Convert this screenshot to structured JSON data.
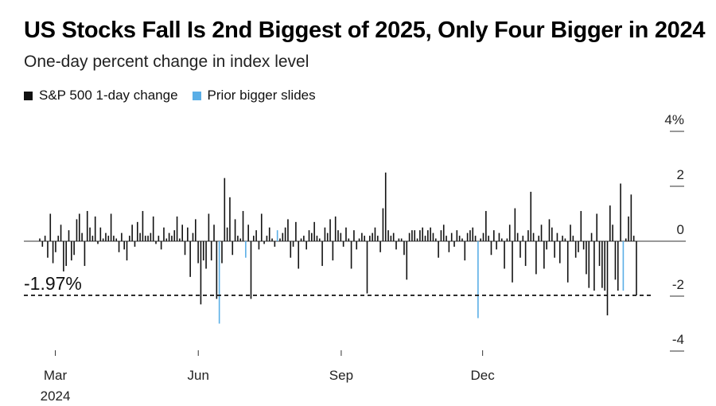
{
  "header": {
    "title": "US Stocks Fall Is 2nd Biggest of 2025, Only Four Bigger in 2024",
    "subtitle": "One-day percent change in index level"
  },
  "colors": {
    "normal": "#111111",
    "highlight": "#5aaee6",
    "axis": "#222222"
  },
  "chart_data": {
    "type": "bar",
    "title": "US Stocks Fall Is 2nd Biggest of 2025, Only Four Bigger in 2024",
    "subtitle": "One-day percent change in index level",
    "legend": [
      {
        "name": "S&P 500 1-day change",
        "color": "#111111"
      },
      {
        "name": "Prior bigger slides",
        "color": "#5aaee6"
      }
    ],
    "legend_position": "top-left",
    "ylim": [
      -4,
      4
    ],
    "y_ticks": [
      {
        "value": 4,
        "label": "4%"
      },
      {
        "value": 2,
        "label": "2"
      },
      {
        "value": 0,
        "label": "0"
      },
      {
        "value": -2,
        "label": "-2"
      },
      {
        "value": -4,
        "label": "-4"
      }
    ],
    "x_ticks": [
      {
        "date": "2024-03-01",
        "label": "Mar",
        "sublabel": "2024"
      },
      {
        "date": "2024-06-01",
        "label": "Jun",
        "sublabel": ""
      },
      {
        "date": "2024-09-01",
        "label": "Sep",
        "sublabel": ""
      },
      {
        "date": "2024-12-01",
        "label": "Dec",
        "sublabel": ""
      }
    ],
    "reference_line": {
      "value": -1.97,
      "label": "-1.97%",
      "style": "dashed"
    },
    "x_start": "2024-02-20",
    "x_end": "2025-03-10",
    "values": [
      0.1,
      -0.2,
      0.2,
      -0.6,
      1.0,
      -0.8,
      -0.4,
      0.2,
      0.6,
      -1.1,
      -0.9,
      0.4,
      -0.7,
      -0.5,
      0.8,
      1.0,
      0.3,
      -0.9,
      1.1,
      0.5,
      0.2,
      0.9,
      -0.1,
      0.5,
      0.1,
      0.3,
      0.2,
      1.0,
      0.2,
      0.1,
      -0.4,
      0.3,
      -0.3,
      -0.7,
      0.2,
      0.6,
      -0.2,
      0.7,
      0.3,
      1.1,
      0.2,
      0.2,
      0.3,
      0.9,
      -0.1,
      0.2,
      -0.3,
      0.5,
      0.1,
      0.3,
      0.2,
      0.4,
      0.9,
      0.1,
      0.6,
      -0.5,
      0.5,
      -1.3,
      0.3,
      0.8,
      -0.8,
      -2.3,
      -0.7,
      -1.0,
      1.0,
      -0.7,
      0.6,
      -2.1,
      -3.0,
      -0.8,
      2.3,
      0.5,
      1.6,
      -0.5,
      0.8,
      0.2,
      0.1,
      1.1,
      -0.6,
      0.6,
      -2.1,
      0.2,
      0.4,
      -0.3,
      1.0,
      -0.1,
      0.2,
      0.5,
      0.1,
      -0.2,
      0.4,
      0.1,
      0.3,
      0.5,
      0.8,
      -0.6,
      -0.2,
      0.7,
      -1.0,
      0.1,
      0.2,
      -0.3,
      0.4,
      0.3,
      0.7,
      0.2,
      0.1,
      -0.9,
      0.5,
      0.3,
      0.8,
      -0.7,
      0.9,
      0.4,
      0.3,
      -0.2,
      0.5,
      0.1,
      -1.0,
      0.4,
      -0.3,
      0.1,
      0.3,
      0.2,
      -1.9,
      0.2,
      0.3,
      0.5,
      0.2,
      -0.4,
      1.2,
      2.5,
      0.4,
      0.2,
      0.3,
      -0.3,
      0.1,
      0.1,
      -0.5,
      -1.4,
      0.3,
      0.4,
      0.4,
      0.1,
      0.4,
      0.5,
      0.2,
      0.4,
      0.5,
      0.3,
      0.1,
      -0.6,
      0.4,
      0.6,
      0.2,
      -0.4,
      0.3,
      -0.2,
      0.4,
      0.2,
      0.1,
      -0.7,
      0.3,
      0.4,
      0.5,
      0.2,
      -2.8,
      0.1,
      0.3,
      1.1,
      0.2,
      -0.5,
      0.4,
      -0.3,
      0.3,
      0.1,
      -1.0,
      0.1,
      0.6,
      -1.5,
      1.2,
      0.3,
      -0.6,
      0.2,
      -0.9,
      0.4,
      1.8,
      0.3,
      -1.2,
      0.2,
      0.6,
      -1.0,
      -0.3,
      0.8,
      0.5,
      -0.6,
      0.3,
      -0.8,
      0.2,
      0.1,
      -1.5,
      0.6,
      0.2,
      -0.6,
      -0.4,
      1.1,
      -0.3,
      -1.2,
      -1.7,
      0.3,
      -1.8,
      1.0,
      -0.9,
      -1.7,
      -1.8,
      -2.7,
      1.3,
      0.6,
      -1.4,
      -1.8,
      2.1,
      -1.8,
      0.1,
      0.9,
      1.7,
      0.2,
      -1.97
    ],
    "highlight_indices": [
      68,
      78,
      90,
      166,
      221
    ]
  }
}
